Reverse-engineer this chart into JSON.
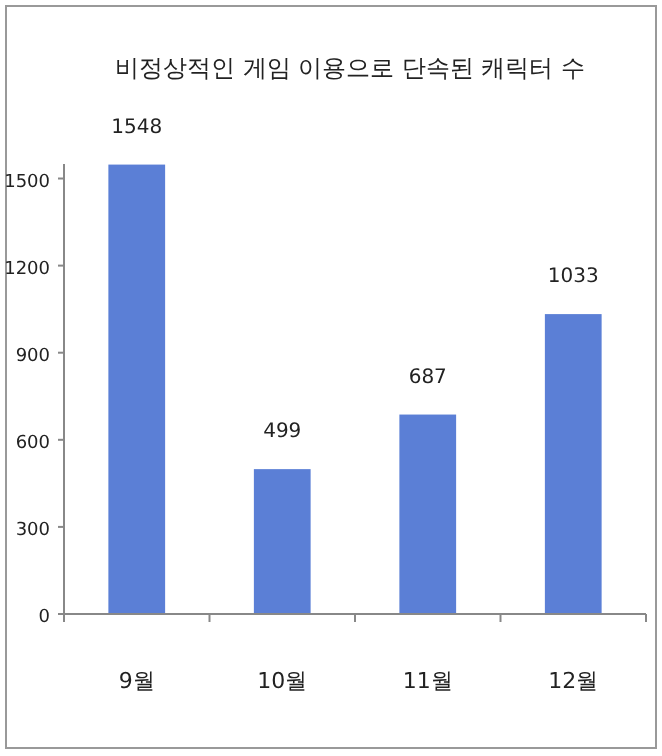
{
  "chart_data": {
    "type": "bar",
    "title": "비정상적인 게임 이용으로 단속된 캐릭터 수",
    "categories": [
      "9월",
      "10월",
      "11월",
      "12월"
    ],
    "values": [
      1548,
      499,
      687,
      1033
    ],
    "color": "#5b7fd6",
    "ylim": [
      0,
      1550
    ],
    "yticks": [
      0,
      300,
      600,
      900,
      1200,
      1500
    ],
    "data_labels": true,
    "grid": false
  }
}
